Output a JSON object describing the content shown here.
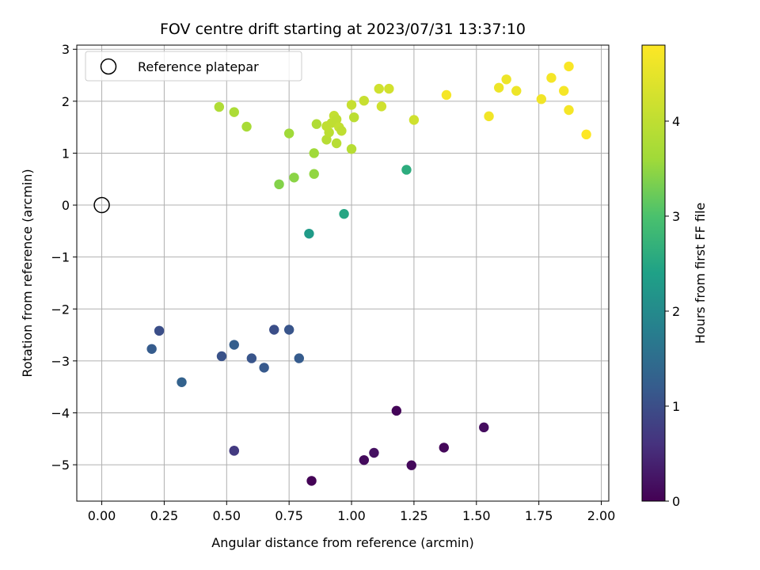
{
  "chart_data": {
    "type": "scatter",
    "title": "FOV centre drift starting at 2023/07/31 13:37:10",
    "xlabel": "Angular distance from reference (arcmin)",
    "ylabel": "Rotation from reference (arcmin)",
    "xlim": [
      -0.1,
      2.03
    ],
    "ylim": [
      -5.7,
      3.08
    ],
    "xticks": [
      0.0,
      0.25,
      0.5,
      0.75,
      1.0,
      1.25,
      1.5,
      1.75,
      2.0
    ],
    "xtick_labels": [
      "0.00",
      "0.25",
      "0.50",
      "0.75",
      "1.00",
      "1.25",
      "1.50",
      "1.75",
      "2.00"
    ],
    "yticks": [
      -5,
      -4,
      -3,
      -2,
      -1,
      0,
      1,
      2,
      3
    ],
    "ytick_labels": [
      "−5",
      "−4",
      "−3",
      "−2",
      "−1",
      "0",
      "1",
      "2",
      "3"
    ],
    "grid": true,
    "legend": {
      "placement": "top-left",
      "entries": [
        "Reference platepar"
      ]
    },
    "reference_point": {
      "x": 0.0,
      "y": 0.0
    },
    "colorbar": {
      "label": "Hours from first FF file",
      "colormap": "viridis",
      "range": [
        0,
        4.8
      ],
      "ticks": [
        0,
        1,
        2,
        3,
        4
      ],
      "tick_labels": [
        "0",
        "1",
        "2",
        "3",
        "4"
      ]
    },
    "points": [
      {
        "x": 0.84,
        "y": -5.31,
        "hours": 0.03
      },
      {
        "x": 1.05,
        "y": -4.91,
        "hours": 0.12
      },
      {
        "x": 1.09,
        "y": -4.77,
        "hours": 0.18
      },
      {
        "x": 1.18,
        "y": -3.96,
        "hours": 0.05
      },
      {
        "x": 1.24,
        "y": -5.01,
        "hours": 0.1
      },
      {
        "x": 1.37,
        "y": -4.67,
        "hours": 0.08
      },
      {
        "x": 1.53,
        "y": -4.28,
        "hours": 0.15
      },
      {
        "x": 0.53,
        "y": -4.73,
        "hours": 0.7
      },
      {
        "x": 0.53,
        "y": -4.73,
        "hours": 0.72
      },
      {
        "x": 0.2,
        "y": -2.77,
        "hours": 1.2
      },
      {
        "x": 0.23,
        "y": -2.42,
        "hours": 1.0
      },
      {
        "x": 0.32,
        "y": -3.41,
        "hours": 1.3
      },
      {
        "x": 0.48,
        "y": -2.91,
        "hours": 1.05
      },
      {
        "x": 0.53,
        "y": -2.69,
        "hours": 1.25
      },
      {
        "x": 0.6,
        "y": -2.95,
        "hours": 1.1
      },
      {
        "x": 0.65,
        "y": -3.13,
        "hours": 1.15
      },
      {
        "x": 0.69,
        "y": -2.4,
        "hours": 1.0
      },
      {
        "x": 0.75,
        "y": -2.4,
        "hours": 1.1
      },
      {
        "x": 0.79,
        "y": -2.95,
        "hours": 1.2
      },
      {
        "x": 0.83,
        "y": -0.55,
        "hours": 2.3
      },
      {
        "x": 0.97,
        "y": -0.17,
        "hours": 2.5
      },
      {
        "x": 1.22,
        "y": 0.68,
        "hours": 2.6
      },
      {
        "x": 0.71,
        "y": 0.4,
        "hours": 3.4
      },
      {
        "x": 0.77,
        "y": 0.53,
        "hours": 3.45
      },
      {
        "x": 0.85,
        "y": 0.6,
        "hours": 3.5
      },
      {
        "x": 0.85,
        "y": 1.0,
        "hours": 3.6
      },
      {
        "x": 0.75,
        "y": 1.38,
        "hours": 3.6
      },
      {
        "x": 0.58,
        "y": 1.51,
        "hours": 3.7
      },
      {
        "x": 0.53,
        "y": 1.79,
        "hours": 3.75
      },
      {
        "x": 0.47,
        "y": 1.89,
        "hours": 3.8
      },
      {
        "x": 0.86,
        "y": 1.56,
        "hours": 3.8
      },
      {
        "x": 0.9,
        "y": 1.26,
        "hours": 3.9
      },
      {
        "x": 0.94,
        "y": 1.19,
        "hours": 3.9
      },
      {
        "x": 0.91,
        "y": 1.4,
        "hours": 3.95
      },
      {
        "x": 0.9,
        "y": 1.52,
        "hours": 4.0
      },
      {
        "x": 0.92,
        "y": 1.58,
        "hours": 4.0
      },
      {
        "x": 0.93,
        "y": 1.72,
        "hours": 4.05
      },
      {
        "x": 0.94,
        "y": 1.65,
        "hours": 4.0
      },
      {
        "x": 0.95,
        "y": 1.5,
        "hours": 4.05
      },
      {
        "x": 0.96,
        "y": 1.43,
        "hours": 4.0
      },
      {
        "x": 1.0,
        "y": 1.08,
        "hours": 3.9
      },
      {
        "x": 1.01,
        "y": 1.69,
        "hours": 3.95
      },
      {
        "x": 1.0,
        "y": 1.93,
        "hours": 4.1
      },
      {
        "x": 1.05,
        "y": 2.01,
        "hours": 4.1
      },
      {
        "x": 1.11,
        "y": 2.24,
        "hours": 4.2
      },
      {
        "x": 1.12,
        "y": 1.9,
        "hours": 4.2
      },
      {
        "x": 1.15,
        "y": 2.24,
        "hours": 4.25
      },
      {
        "x": 1.25,
        "y": 1.64,
        "hours": 4.2
      },
      {
        "x": 1.38,
        "y": 2.12,
        "hours": 4.7
      },
      {
        "x": 1.55,
        "y": 1.71,
        "hours": 4.65
      },
      {
        "x": 1.59,
        "y": 2.26,
        "hours": 4.6
      },
      {
        "x": 1.62,
        "y": 2.42,
        "hours": 4.6
      },
      {
        "x": 1.66,
        "y": 2.2,
        "hours": 4.6
      },
      {
        "x": 1.76,
        "y": 2.04,
        "hours": 4.65
      },
      {
        "x": 1.8,
        "y": 2.45,
        "hours": 4.7
      },
      {
        "x": 1.85,
        "y": 2.2,
        "hours": 4.7
      },
      {
        "x": 1.87,
        "y": 2.67,
        "hours": 4.75
      },
      {
        "x": 1.87,
        "y": 1.83,
        "hours": 4.7
      },
      {
        "x": 1.94,
        "y": 1.36,
        "hours": 4.8
      }
    ]
  }
}
